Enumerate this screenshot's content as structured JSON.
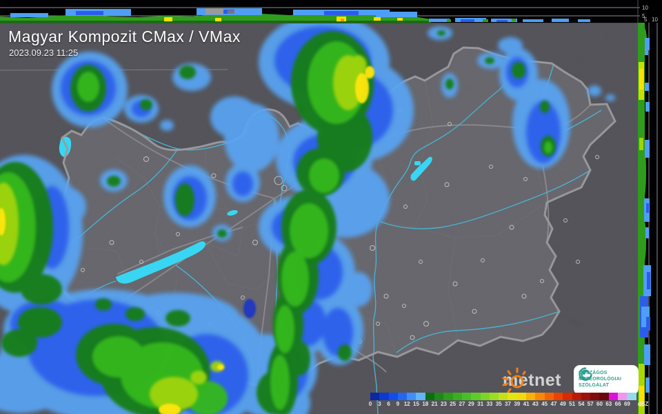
{
  "header": {
    "title": "Magyar Kompozit CMax / VMax",
    "timestamp": "2023.09.23 11:25"
  },
  "cross_sections": {
    "top": {
      "label_10": "10",
      "label_5": "5"
    },
    "right": {
      "label_5": "5",
      "label_10": "10"
    }
  },
  "scale": {
    "unit": "dBZ",
    "labels": [
      "0",
      "3",
      "6",
      "9",
      "12",
      "15",
      "18",
      "21",
      "23",
      "25",
      "27",
      "29",
      "31",
      "33",
      "35",
      "37",
      "39",
      "41",
      "43",
      "45",
      "47",
      "49",
      "51",
      "54",
      "57",
      "60",
      "63",
      "66",
      "69"
    ],
    "colors": [
      "#0a28a0",
      "#0b3ace",
      "#114ee8",
      "#2466f0",
      "#418ef6",
      "#63b4f8",
      "#0d6e10",
      "#20881a",
      "#2f9c1e",
      "#3cac22",
      "#4abc26",
      "#5ecc28",
      "#7cd428",
      "#9cdc24",
      "#c4e01c",
      "#e4e414",
      "#f4d80e",
      "#f8b00a",
      "#f88808",
      "#f46206",
      "#ea4204",
      "#d82a04",
      "#b81c06",
      "#9a120a",
      "#800a0c",
      "#6a060c",
      "#da12da",
      "#f096ec",
      "#96d8ec"
    ]
  },
  "logos": {
    "metnet": {
      "text": "metnet"
    },
    "omsz": {
      "line1": "ORSZÁGOS",
      "line2": "METEOROLÓGIAI",
      "line3": "SZOLGÁLAT"
    }
  },
  "colors": {
    "accent_orange": "#f08018",
    "omsz_teal": "#2e9e8f",
    "lake_cyan": "#38d6f2"
  }
}
